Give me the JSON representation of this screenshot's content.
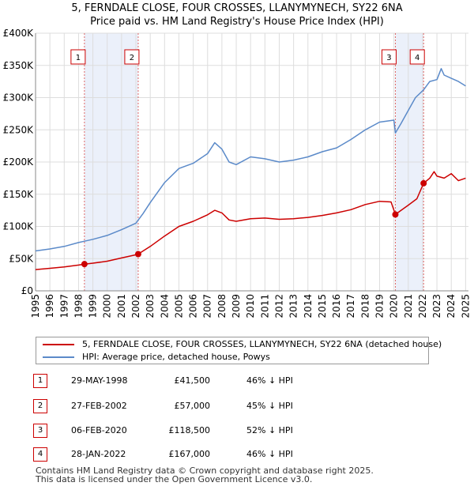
{
  "title_line1": "5, FERNDALE CLOSE, FOUR CROSSES, LLANYMYNECH, SY22 6NA",
  "title_line2": "Price paid vs. HM Land Registry's House Price Index (HPI)",
  "chart_data": {
    "type": "line",
    "xlim": [
      1995.0,
      2025.2
    ],
    "ylim": [
      0,
      400000
    ],
    "y_ticks": [
      0,
      50000,
      100000,
      150000,
      200000,
      250000,
      300000,
      350000,
      400000
    ],
    "y_tick_labels": [
      "£0",
      "£50K",
      "£100K",
      "£150K",
      "£200K",
      "£250K",
      "£300K",
      "£350K",
      "£400K"
    ],
    "x_ticks": [
      1995,
      1996,
      1997,
      1998,
      1999,
      2000,
      2001,
      2002,
      2003,
      2004,
      2005,
      2006,
      2007,
      2008,
      2009,
      2010,
      2011,
      2012,
      2013,
      2014,
      2015,
      2016,
      2017,
      2018,
      2019,
      2020,
      2021,
      2022,
      2023,
      2024,
      2025
    ],
    "x_tick_labels": [
      "1995",
      "1996",
      "1997",
      "1998",
      "1999",
      "2000",
      "2001",
      "2002",
      "2003",
      "2004",
      "2005",
      "2006",
      "2007",
      "2008",
      "2009",
      "2010",
      "2011",
      "2012",
      "2013",
      "2014",
      "2015",
      "2016",
      "2017",
      "2018",
      "2019",
      "2020",
      "2021",
      "2022",
      "2023",
      "2024",
      "2025"
    ],
    "grid": true,
    "shaded_periods": [
      [
        1998.41,
        2002.16
      ],
      [
        2020.1,
        2022.07
      ]
    ],
    "series": [
      {
        "name": "5, FERNDALE CLOSE, FOUR CROSSES, LLANYMYNECH, SY22 6NA (detached house)",
        "color": "#cc0000",
        "x": [
          1995.0,
          1996.0,
          1997.0,
          1998.0,
          1998.41,
          1999.0,
          2000.0,
          2001.0,
          2002.0,
          2002.16,
          2003.0,
          2004.0,
          2005.0,
          2006.0,
          2007.0,
          2007.5,
          2008.0,
          2008.5,
          2009.0,
          2010.0,
          2011.0,
          2012.0,
          2013.0,
          2014.0,
          2015.0,
          2016.0,
          2017.0,
          2018.0,
          2019.0,
          2019.8,
          2020.1,
          2020.5,
          2021.0,
          2021.6,
          2022.07,
          2022.5,
          2022.8,
          2023.0,
          2023.5,
          2024.0,
          2024.5,
          2025.0
        ],
        "values": [
          33000,
          35000,
          37000,
          40000,
          41500,
          43000,
          46000,
          51000,
          56000,
          57000,
          69000,
          85000,
          100000,
          108000,
          118000,
          125000,
          121000,
          110000,
          108000,
          112000,
          113000,
          111000,
          112000,
          114000,
          117000,
          121000,
          126000,
          134000,
          139000,
          138000,
          118500,
          125000,
          133000,
          143000,
          167000,
          175000,
          185000,
          178000,
          175000,
          182000,
          171000,
          175000
        ]
      },
      {
        "name": "HPI: Average price, detached house, Powys",
        "color": "#5b8ac9",
        "x": [
          1995.0,
          1996.0,
          1997.0,
          1998.0,
          1998.41,
          1999.0,
          2000.0,
          2001.0,
          2002.0,
          2002.5,
          2003.0,
          2004.0,
          2005.0,
          2006.0,
          2007.0,
          2007.5,
          2008.0,
          2008.5,
          2009.0,
          2010.0,
          2011.0,
          2012.0,
          2013.0,
          2014.0,
          2015.0,
          2016.0,
          2017.0,
          2018.0,
          2019.0,
          2020.0,
          2020.1,
          2020.5,
          2021.0,
          2021.5,
          2022.07,
          2022.5,
          2023.0,
          2023.3,
          2023.5,
          2024.0,
          2024.5,
          2025.0
        ],
        "values": [
          62000,
          65000,
          69000,
          75000,
          77000,
          80000,
          86000,
          95000,
          105000,
          120000,
          137000,
          168000,
          190000,
          198000,
          213000,
          230000,
          220000,
          200000,
          196000,
          208000,
          205000,
          200000,
          203000,
          208000,
          216000,
          222000,
          235000,
          250000,
          262000,
          265000,
          245000,
          260000,
          280000,
          300000,
          312000,
          325000,
          328000,
          345000,
          335000,
          330000,
          325000,
          318000
        ]
      }
    ],
    "markers": [
      {
        "label": "1",
        "x": 1998.41,
        "y": 41500
      },
      {
        "label": "2",
        "x": 2002.16,
        "y": 57000
      },
      {
        "label": "3",
        "x": 2020.1,
        "y": 118500
      },
      {
        "label": "4",
        "x": 2022.07,
        "y": 167000
      }
    ]
  },
  "legend": {
    "property_label": "5, FERNDALE CLOSE, FOUR CROSSES, LLANYMYNECH, SY22 6NA (detached house)",
    "hpi_label": "HPI: Average price, detached house, Powys",
    "property_color": "#cc0000",
    "hpi_color": "#5b8ac9"
  },
  "sales": [
    {
      "num": "1",
      "date": "29-MAY-1998",
      "price": "£41,500",
      "hpi": "46% ↓ HPI"
    },
    {
      "num": "2",
      "date": "27-FEB-2002",
      "price": "£57,000",
      "hpi": "45% ↓ HPI"
    },
    {
      "num": "3",
      "date": "06-FEB-2020",
      "price": "£118,500",
      "hpi": "52% ↓ HPI"
    },
    {
      "num": "4",
      "date": "28-JAN-2022",
      "price": "£167,000",
      "hpi": "46% ↓ HPI"
    }
  ],
  "footer": {
    "line1": "Contains HM Land Registry data © Crown copyright and database right 2025.",
    "line2": "This data is licensed under the Open Government Licence v3.0."
  }
}
